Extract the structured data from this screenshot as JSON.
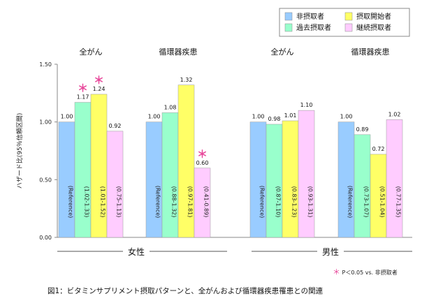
{
  "chart_data": {
    "type": "bar",
    "ylabel": "ハザード比(95％信頼区間)",
    "ylim": [
      0,
      1.5
    ],
    "yticks": [
      "0.00",
      "0.50",
      "1.00",
      "1.50"
    ],
    "legend_position": "top-right",
    "series": [
      {
        "name": "非摂取者",
        "color": "#99ccff"
      },
      {
        "name": "過去摂取者",
        "color": "#99ffcc"
      },
      {
        "name": "摂取開始者",
        "color": "#ffff66"
      },
      {
        "name": "継続摂取者",
        "color": "#ffccff"
      }
    ],
    "groups": [
      {
        "label": "全がん",
        "values": [
          1.0,
          1.17,
          1.24,
          0.92
        ],
        "value_labels": [
          "1.00",
          "1.17",
          "1.24",
          "0.92"
        ],
        "ci": [
          "(Reference)",
          "(1.02-1.33)",
          "(1.01-1.52)",
          "(0.75-1.13)"
        ],
        "significant": [
          false,
          true,
          true,
          false
        ]
      },
      {
        "label": "循環器疾患",
        "values": [
          1.0,
          1.08,
          1.32,
          0.6
        ],
        "value_labels": [
          "1.00",
          "1.08",
          "1.32",
          "0.60"
        ],
        "ci": [
          "(Reference)",
          "(0.88-1.32)",
          "(0.97-1.81)",
          "(0.41-0.89)"
        ],
        "significant": [
          false,
          false,
          false,
          true
        ]
      },
      {
        "label": "全がん",
        "values": [
          1.0,
          0.98,
          1.01,
          1.1
        ],
        "value_labels": [
          "1.00",
          "0.98",
          "1.01",
          "1.10"
        ],
        "ci": [
          "(Reference)",
          "(0.87-1.10)",
          "(0.83-1.23)",
          "(0.93-1.31)"
        ],
        "significant": [
          false,
          false,
          false,
          false
        ]
      },
      {
        "label": "循環器疾患",
        "values": [
          1.0,
          0.89,
          0.72,
          1.02
        ],
        "value_labels": [
          "1.00",
          "0.89",
          "0.72",
          "1.02"
        ],
        "ci": [
          "(Reference)",
          "(0.73-1.07)",
          "(0.51-1.04)",
          "(0.77-1.35)"
        ],
        "significant": [
          false,
          false,
          false,
          false
        ]
      }
    ],
    "sex_labels": [
      "女性",
      "男性"
    ],
    "significance_marker": "＊",
    "significance_note": "P＜0.05 vs. 非摂取者",
    "caption": "図1：ビタミンサプリメント摂取パターンと、全がんおよび循環器疾患罹患との関連"
  }
}
